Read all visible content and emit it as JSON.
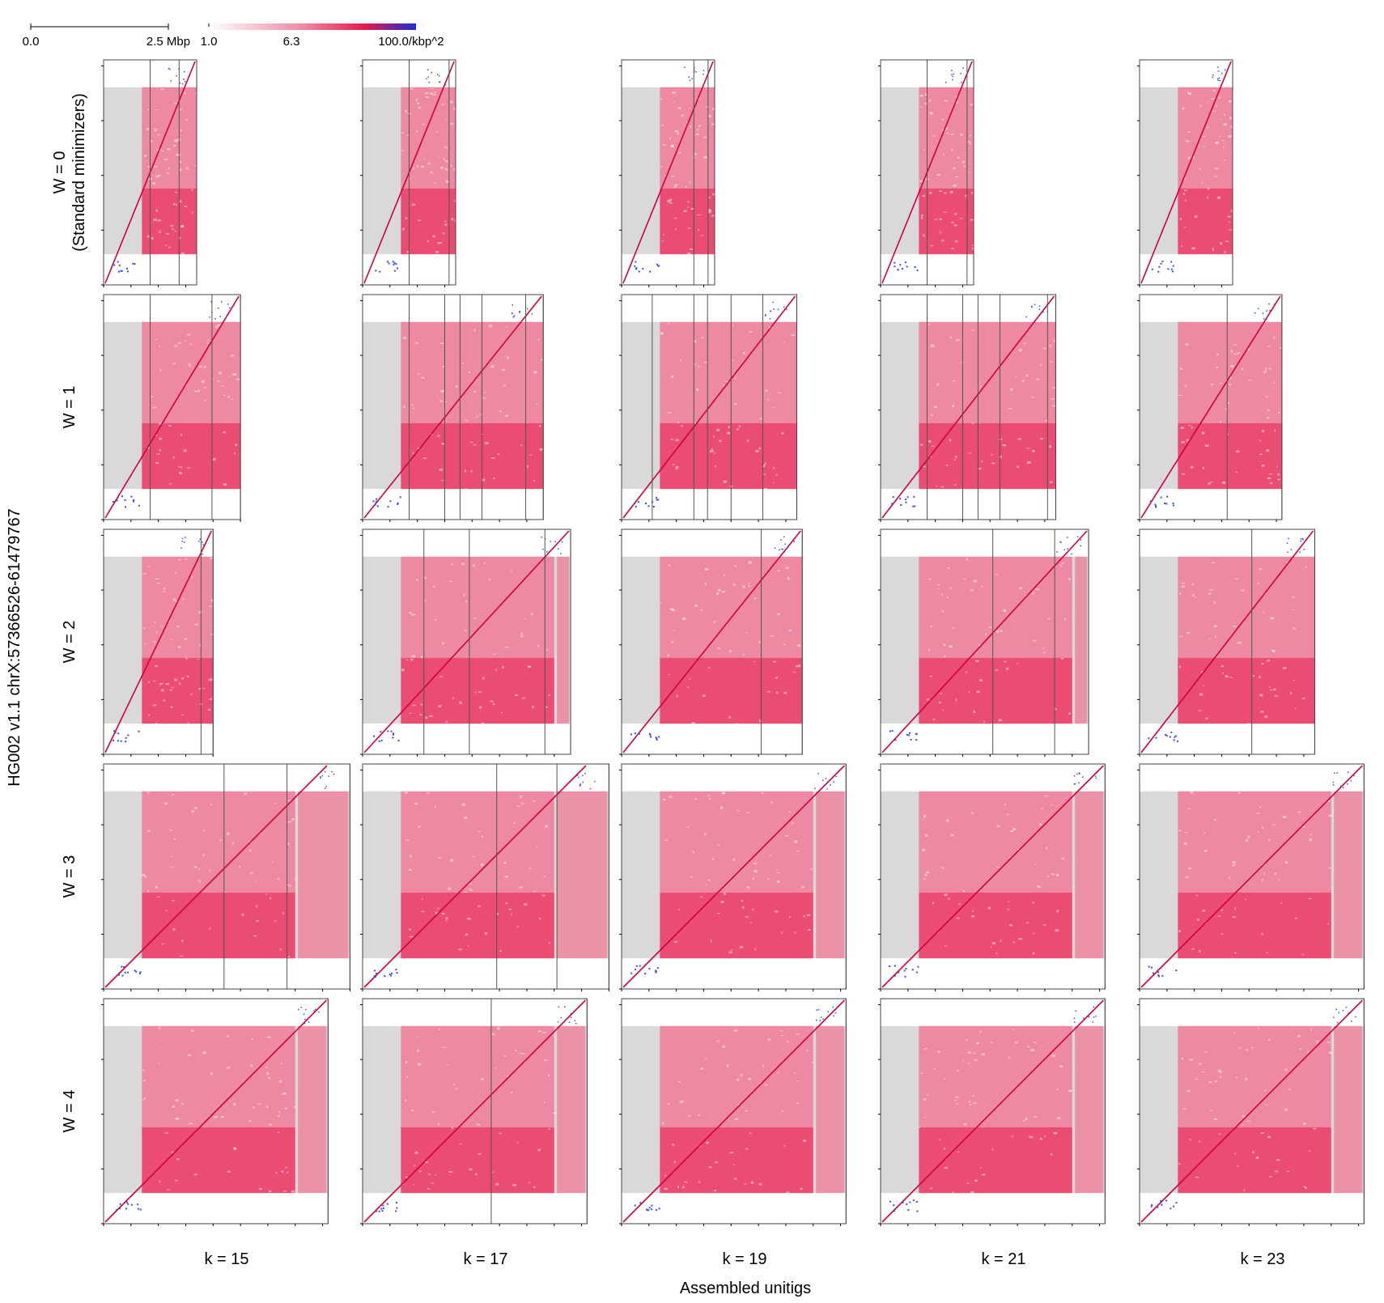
{
  "figure": {
    "ylabel": "HG002 v1.1 chrX:57366526-61479767",
    "xlabel": "Assembled unitigs"
  },
  "scale_bar": {
    "start_label": "0.0",
    "end_label": "2.5 Mbp"
  },
  "color_legend": {
    "labels": [
      "1.0",
      "6.3",
      "100.0/kbp^2"
    ],
    "colors": [
      "#ffffff",
      "#e8194b",
      "#1c2fd6"
    ]
  },
  "chart_data": {
    "type": "heatmap",
    "description_units": "dot-plot panels of minimizer matches; columns = k, rows = W",
    "columns": [
      {
        "key": "k15",
        "label": "k = 15"
      },
      {
        "key": "k17",
        "label": "k = 17"
      },
      {
        "key": "k19",
        "label": "k = 19"
      },
      {
        "key": "k21",
        "label": "k = 21"
      },
      {
        "key": "k23",
        "label": "k = 23"
      }
    ],
    "rows": [
      {
        "key": "W0",
        "label_lines": [
          "W = 0",
          "(Standard minimizers)"
        ]
      },
      {
        "key": "W1",
        "label_lines": [
          "W = 1"
        ]
      },
      {
        "key": "W2",
        "label_lines": [
          "W = 2"
        ]
      },
      {
        "key": "W3",
        "label_lines": [
          "W = 3"
        ]
      },
      {
        "key": "W4",
        "label_lines": [
          "W = 4"
        ]
      }
    ],
    "reference_length_mbp": 4.11,
    "panel_widths_mbp": [
      [
        1.7,
        1.7,
        1.7,
        1.7,
        1.7
      ],
      [
        2.5,
        3.3,
        3.2,
        3.2,
        2.6
      ],
      [
        2.0,
        3.8,
        3.3,
        3.8,
        3.2
      ],
      [
        4.5,
        4.5,
        4.1,
        4.1,
        4.1
      ],
      [
        4.1,
        4.1,
        4.1,
        4.1,
        4.1
      ]
    ],
    "unitig_boundaries_mbp": [
      [
        [
          0.85,
          1.38
        ],
        [
          0.85,
          1.58
        ],
        [
          1.32,
          1.58
        ],
        [
          0.85,
          1.58
        ],
        [
          1.72
        ]
      ],
      [
        [
          0.85,
          1.98
        ],
        [
          0.85,
          1.5,
          1.78,
          2.18,
          2.98
        ],
        [
          0.56,
          1.32,
          1.57,
          2.0,
          2.58
        ],
        [
          0.85,
          1.5,
          1.78,
          2.18,
          3.05
        ],
        [
          1.6
        ]
      ],
      [
        [
          1.78
        ],
        [
          1.12,
          1.95,
          3.33
        ],
        [
          2.55
        ],
        [
          2.05,
          3.18
        ],
        [
          2.05
        ]
      ],
      [
        [
          2.2,
          3.35
        ],
        [
          2.45,
          3.55
        ],
        [],
        [],
        []
      ],
      [
        [],
        [
          2.35
        ],
        [],
        [],
        []
      ]
    ],
    "grey_band_y_mbp": [
      0.5,
      3.55
    ],
    "colorscale": {
      "min": 1.0,
      "mid": 6.3,
      "max": 100.0,
      "unit": "/kbp^2"
    }
  }
}
